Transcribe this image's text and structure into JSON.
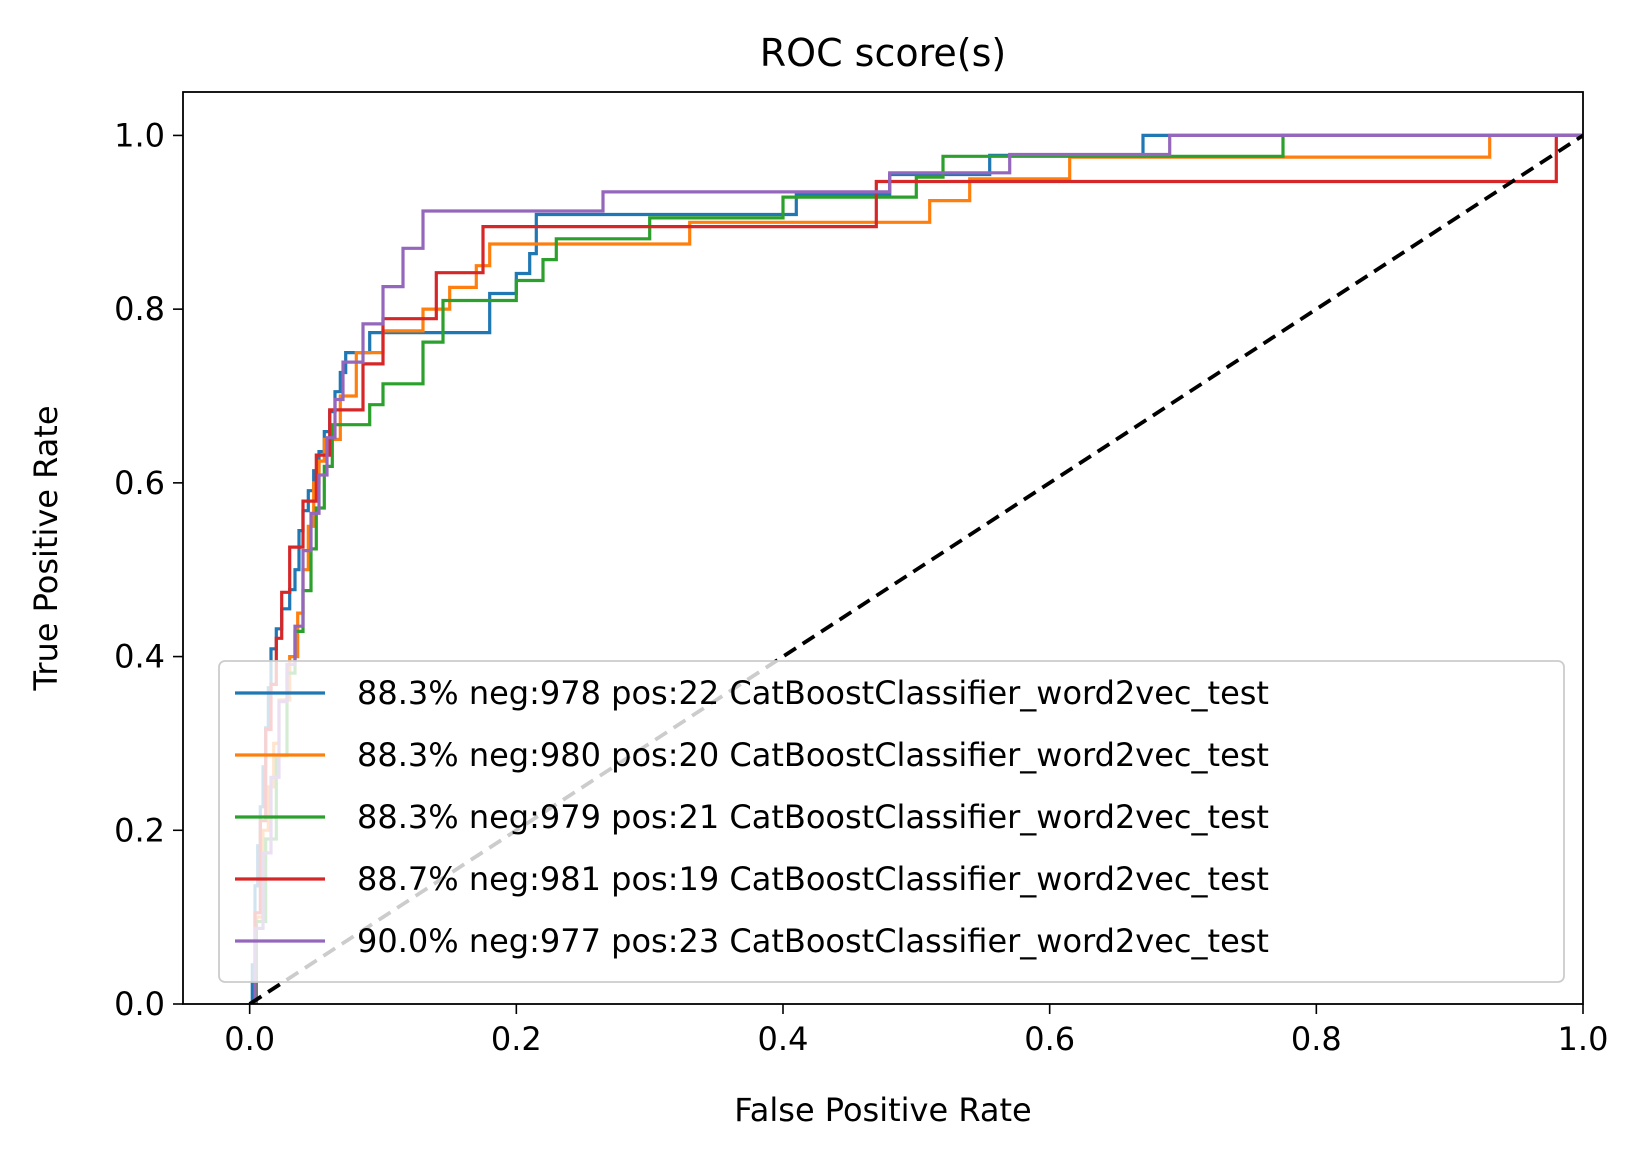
{
  "chart_data": {
    "type": "line",
    "title": "ROC score(s)",
    "xlabel": "False Positive Rate",
    "ylabel": "True Positive Rate",
    "xlim": [
      -0.05,
      1.0
    ],
    "ylim": [
      0.0,
      1.05
    ],
    "xticks": [
      "0.0",
      "0.2",
      "0.4",
      "0.6",
      "0.8",
      "1.0"
    ],
    "yticks": [
      "0.0",
      "0.2",
      "0.4",
      "0.6",
      "0.8",
      "1.0"
    ],
    "xtick_values": [
      0.0,
      0.2,
      0.4,
      0.6,
      0.8,
      1.0
    ],
    "ytick_values": [
      0.0,
      0.2,
      0.4,
      0.6,
      0.8,
      1.0
    ],
    "grid": false,
    "legend_position": "lower-right",
    "series": [
      {
        "name": "88.3% neg:978 pos:22 CatBoostClassifier_word2vec_test",
        "color": "#1f77b4",
        "x": [
          0,
          0.002,
          0.002,
          0.004,
          0.004,
          0.006,
          0.006,
          0.008,
          0.008,
          0.01,
          0.01,
          0.012,
          0.012,
          0.014,
          0.014,
          0.016,
          0.016,
          0.02,
          0.02,
          0.024,
          0.024,
          0.03,
          0.03,
          0.034,
          0.034,
          0.037,
          0.037,
          0.04,
          0.04,
          0.044,
          0.044,
          0.048,
          0.048,
          0.052,
          0.052,
          0.056,
          0.056,
          0.06,
          0.06,
          0.064,
          0.064,
          0.068,
          0.068,
          0.072,
          0.072,
          0.08,
          0.08,
          0.09,
          0.09,
          0.1,
          0.1,
          0.11,
          0.11,
          0.12,
          0.12,
          0.13,
          0.13,
          0.17,
          0.17,
          0.18,
          0.18,
          0.2,
          0.2,
          0.21,
          0.21,
          0.215,
          0.215,
          0.41,
          0.41,
          0.48,
          0.48,
          0.555,
          0.555,
          0.67,
          0.67,
          1.0
        ],
        "y": [
          0,
          0,
          0.045,
          0.045,
          0.136,
          0.136,
          0.182,
          0.182,
          0.227,
          0.227,
          0.273,
          0.273,
          0.318,
          0.318,
          0.364,
          0.364,
          0.409,
          0.409,
          0.432,
          0.432,
          0.455,
          0.455,
          0.477,
          0.477,
          0.5,
          0.5,
          0.545,
          0.545,
          0.568,
          0.568,
          0.591,
          0.591,
          0.614,
          0.614,
          0.636,
          0.636,
          0.659,
          0.659,
          0.682,
          0.682,
          0.705,
          0.705,
          0.727,
          0.727,
          0.75,
          0.75,
          0.75,
          0.75,
          0.773,
          0.773,
          0.773,
          0.773,
          0.773,
          0.773,
          0.773,
          0.773,
          0.773,
          0.773,
          0.773,
          0.773,
          0.818,
          0.818,
          0.841,
          0.841,
          0.864,
          0.864,
          0.909,
          0.909,
          0.932,
          0.932,
          0.955,
          0.955,
          0.977,
          0.977,
          1.0,
          1.0
        ]
      },
      {
        "name": "88.3% neg:980 pos:20 CatBoostClassifier_word2vec_test",
        "color": "#ff7f0e",
        "x": [
          0,
          0.005,
          0.005,
          0.01,
          0.01,
          0.014,
          0.014,
          0.018,
          0.018,
          0.022,
          0.022,
          0.03,
          0.03,
          0.036,
          0.036,
          0.04,
          0.04,
          0.044,
          0.044,
          0.048,
          0.048,
          0.052,
          0.052,
          0.056,
          0.056,
          0.06,
          0.06,
          0.064,
          0.064,
          0.068,
          0.068,
          0.08,
          0.08,
          0.1,
          0.1,
          0.13,
          0.13,
          0.15,
          0.15,
          0.17,
          0.17,
          0.18,
          0.18,
          0.29,
          0.29,
          0.33,
          0.33,
          0.51,
          0.51,
          0.54,
          0.54,
          0.615,
          0.615,
          0.775,
          0.775,
          0.93,
          0.93,
          1.0
        ],
        "y": [
          0,
          0,
          0.1,
          0.1,
          0.2,
          0.2,
          0.25,
          0.25,
          0.3,
          0.3,
          0.35,
          0.35,
          0.4,
          0.4,
          0.45,
          0.45,
          0.5,
          0.5,
          0.55,
          0.55,
          0.6,
          0.6,
          0.625,
          0.625,
          0.65,
          0.65,
          0.65,
          0.65,
          0.65,
          0.65,
          0.7,
          0.7,
          0.75,
          0.75,
          0.775,
          0.775,
          0.8,
          0.8,
          0.825,
          0.825,
          0.85,
          0.85,
          0.875,
          0.875,
          0.875,
          0.875,
          0.9,
          0.9,
          0.925,
          0.925,
          0.95,
          0.95,
          0.975,
          0.975,
          0.975,
          0.975,
          1.0,
          1.0
        ]
      },
      {
        "name": "88.3% neg:979 pos:21 CatBoostClassifier_word2vec_test",
        "color": "#2ca02c",
        "x": [
          0,
          0.005,
          0.005,
          0.012,
          0.012,
          0.02,
          0.02,
          0.028,
          0.028,
          0.034,
          0.034,
          0.04,
          0.04,
          0.046,
          0.046,
          0.05,
          0.05,
          0.056,
          0.056,
          0.062,
          0.062,
          0.072,
          0.072,
          0.08,
          0.08,
          0.09,
          0.09,
          0.1,
          0.1,
          0.13,
          0.13,
          0.145,
          0.145,
          0.2,
          0.2,
          0.22,
          0.22,
          0.23,
          0.23,
          0.3,
          0.3,
          0.4,
          0.4,
          0.5,
          0.5,
          0.52,
          0.52,
          0.775,
          0.775,
          1.0
        ],
        "y": [
          0,
          0,
          0.095,
          0.095,
          0.19,
          0.19,
          0.286,
          0.286,
          0.381,
          0.381,
          0.429,
          0.429,
          0.476,
          0.476,
          0.524,
          0.524,
          0.571,
          0.571,
          0.619,
          0.619,
          0.667,
          0.667,
          0.667,
          0.667,
          0.667,
          0.667,
          0.69,
          0.69,
          0.714,
          0.714,
          0.762,
          0.762,
          0.81,
          0.81,
          0.833,
          0.833,
          0.857,
          0.857,
          0.881,
          0.881,
          0.905,
          0.905,
          0.929,
          0.929,
          0.952,
          0.952,
          0.976,
          0.976,
          1.0,
          1.0
        ]
      },
      {
        "name": "88.7% neg:981 pos:19 CatBoostClassifier_word2vec_test",
        "color": "#d62728",
        "x": [
          0,
          0.004,
          0.004,
          0.008,
          0.008,
          0.012,
          0.012,
          0.016,
          0.016,
          0.02,
          0.02,
          0.024,
          0.024,
          0.03,
          0.03,
          0.04,
          0.04,
          0.05,
          0.05,
          0.06,
          0.06,
          0.075,
          0.075,
          0.085,
          0.085,
          0.1,
          0.1,
          0.13,
          0.13,
          0.14,
          0.14,
          0.16,
          0.16,
          0.175,
          0.175,
          0.19,
          0.19,
          0.47,
          0.47,
          0.5,
          0.5,
          0.69,
          0.69,
          0.82,
          0.82,
          0.98,
          0.98,
          1.0
        ],
        "y": [
          0,
          0,
          0.105,
          0.105,
          0.211,
          0.211,
          0.316,
          0.316,
          0.368,
          0.368,
          0.421,
          0.421,
          0.474,
          0.474,
          0.526,
          0.526,
          0.579,
          0.579,
          0.632,
          0.632,
          0.684,
          0.684,
          0.684,
          0.684,
          0.737,
          0.737,
          0.789,
          0.789,
          0.789,
          0.789,
          0.842,
          0.842,
          0.842,
          0.842,
          0.895,
          0.895,
          0.895,
          0.895,
          0.947,
          0.947,
          0.947,
          0.947,
          0.947,
          0.947,
          0.947,
          0.947,
          1.0,
          1.0
        ]
      },
      {
        "name": "90.0% neg:977 pos:23 CatBoostClassifier_word2vec_test",
        "color": "#9467bd",
        "x": [
          0,
          0.004,
          0.004,
          0.01,
          0.01,
          0.016,
          0.016,
          0.022,
          0.022,
          0.028,
          0.028,
          0.034,
          0.034,
          0.04,
          0.04,
          0.046,
          0.046,
          0.052,
          0.052,
          0.058,
          0.058,
          0.064,
          0.064,
          0.07,
          0.07,
          0.078,
          0.078,
          0.085,
          0.085,
          0.092,
          0.092,
          0.1,
          0.1,
          0.11,
          0.11,
          0.115,
          0.115,
          0.12,
          0.12,
          0.13,
          0.13,
          0.265,
          0.265,
          0.48,
          0.48,
          0.57,
          0.57,
          0.69,
          0.69,
          0.74,
          0.74,
          1.0
        ],
        "y": [
          0,
          0,
          0.087,
          0.087,
          0.174,
          0.174,
          0.261,
          0.261,
          0.348,
          0.348,
          0.391,
          0.391,
          0.435,
          0.435,
          0.522,
          0.522,
          0.565,
          0.565,
          0.609,
          0.609,
          0.652,
          0.652,
          0.696,
          0.696,
          0.739,
          0.739,
          0.739,
          0.739,
          0.783,
          0.783,
          0.783,
          0.783,
          0.826,
          0.826,
          0.826,
          0.826,
          0.87,
          0.87,
          0.87,
          0.87,
          0.913,
          0.913,
          0.935,
          0.935,
          0.957,
          0.957,
          0.978,
          0.978,
          1.0,
          1.0,
          1.0,
          1.0
        ]
      }
    ],
    "reference_lines": [
      {
        "name": "chance-diagonal",
        "color": "#000000",
        "style": "dashed",
        "x": [
          0.0,
          1.0
        ],
        "y": [
          0.0,
          1.0
        ]
      }
    ]
  }
}
